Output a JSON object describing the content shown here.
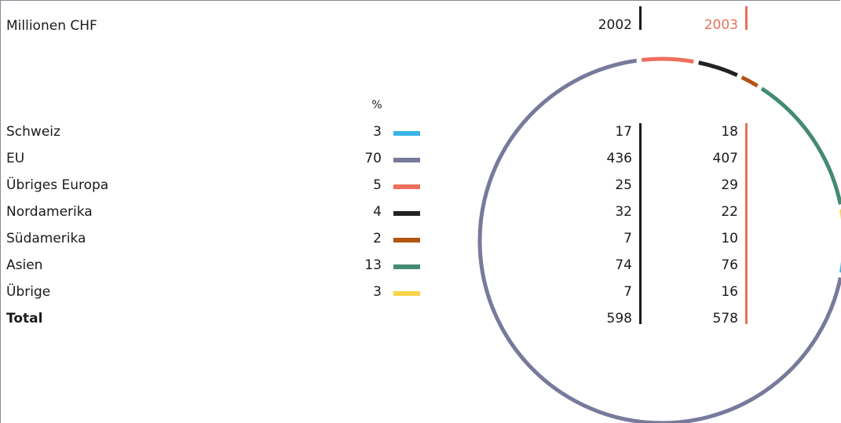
{
  "header": {
    "unit_label": "Millionen CHF",
    "year_a": "2002",
    "year_b": "2003",
    "pct_header": "%"
  },
  "colors": {
    "year_a_bar": "#1a1a1a",
    "year_b_bar": "#e8705c",
    "frame": "#8a8a96"
  },
  "rows": [
    {
      "label": "Schweiz",
      "pct": "3",
      "v2002": "17",
      "v2003": "18",
      "color": "#3ab4e6"
    },
    {
      "label": "EU",
      "pct": "70",
      "v2002": "436",
      "v2003": "407",
      "color": "#777a9b"
    },
    {
      "label": "Übriges Europa",
      "pct": "5",
      "v2002": "25",
      "v2003": "29",
      "color": "#ee6f5c"
    },
    {
      "label": "Nordamerika",
      "pct": "4",
      "v2002": "32",
      "v2003": "22",
      "color": "#222222"
    },
    {
      "label": "Südamerika",
      "pct": "2",
      "v2002": "7",
      "v2003": "10",
      "color": "#b35412"
    },
    {
      "label": "Asien",
      "pct": "13",
      "v2002": "74",
      "v2003": "76",
      "color": "#458a72"
    },
    {
      "label": "Übrige",
      "pct": "3",
      "v2002": "7",
      "v2003": "16",
      "color": "#f8d54a"
    }
  ],
  "total": {
    "label": "Total",
    "v2002": "598",
    "v2003": "578"
  },
  "chart_data": {
    "type": "pie",
    "style": "ring",
    "unit": "%",
    "categories": [
      "Schweiz",
      "EU",
      "Übriges Europa",
      "Nordamerika",
      "Südamerika",
      "Asien",
      "Übrige"
    ],
    "values": [
      3,
      70,
      5,
      4,
      2,
      13,
      3
    ],
    "colors": [
      "#3ab4e6",
      "#777a9b",
      "#ee6f5c",
      "#222222",
      "#b35412",
      "#458a72",
      "#f8d54a"
    ],
    "table": {
      "columns": [
        "2002",
        "2003"
      ],
      "rows": [
        {
          "label": "Schweiz",
          "values": [
            17,
            18
          ]
        },
        {
          "label": "EU",
          "values": [
            436,
            407
          ]
        },
        {
          "label": "Übriges Europa",
          "values": [
            25,
            29
          ]
        },
        {
          "label": "Nordamerika",
          "values": [
            32,
            22
          ]
        },
        {
          "label": "Südamerika",
          "values": [
            7,
            10
          ]
        },
        {
          "label": "Asien",
          "values": [
            74,
            76
          ]
        },
        {
          "label": "Übrige",
          "values": [
            7,
            16
          ]
        },
        {
          "label": "Total",
          "values": [
            598,
            578
          ]
        }
      ]
    }
  }
}
